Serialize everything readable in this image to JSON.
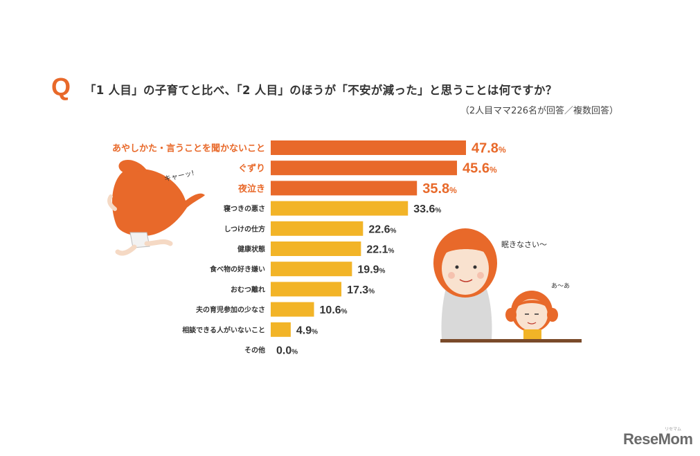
{
  "header": {
    "q_mark": "Q",
    "title": "「1 人目」の子育てと比べ、「2 人目」のほうが「不安が減った」と思うことは何ですか？",
    "subtitle": "（2人目ママ226名が回答／複数回答）"
  },
  "illustrations": {
    "kid_shout": "キャーッ!",
    "mom_speech": "眠きなさい〜",
    "child_speech": "あ〜あ"
  },
  "logo": {
    "text": "ReseMom",
    "small_text": "リセマム"
  },
  "colors": {
    "accent": "#e8692a",
    "bar_top": "#e8692a",
    "bar_other": "#f2b427"
  },
  "chart_data": {
    "type": "bar",
    "orientation": "horizontal",
    "unit": "%",
    "categories": [
      "あやしかた・言うことを聞かないこと",
      "ぐずり",
      "夜泣き",
      "寝つきの悪さ",
      "しつけの仕方",
      "健康状態",
      "食べ物の好き嫌い",
      "おむつ離れ",
      "夫の育児参加の少なさ",
      "相談できる人がいないこと",
      "その他"
    ],
    "values": [
      47.8,
      45.6,
      35.8,
      33.6,
      22.6,
      22.1,
      19.9,
      17.3,
      10.6,
      4.9,
      0.0
    ],
    "value_labels": [
      "47.8",
      "45.6",
      "35.8",
      "33.6",
      "22.6",
      "22.1",
      "19.9",
      "17.3",
      "10.6",
      "4.9",
      "0.0"
    ],
    "highlighted_top": 3,
    "xlim": [
      0,
      50
    ]
  }
}
